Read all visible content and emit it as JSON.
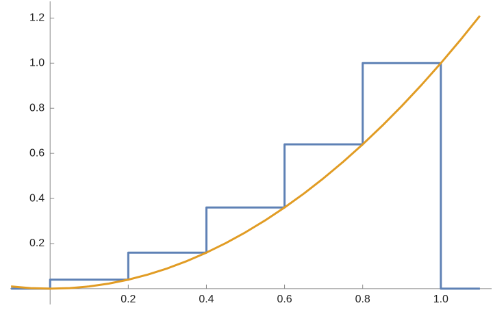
{
  "chart_data": {
    "type": "line",
    "xlim": [
      -0.102,
      1.13
    ],
    "ylim": [
      -0.07,
      1.28
    ],
    "xticks": [
      0.2,
      0.4,
      0.6,
      0.8,
      {
        "value": 1,
        "label": "1.0"
      }
    ],
    "yticks": [
      0.2,
      0.4,
      0.6,
      0.8,
      {
        "value": 1,
        "label": "1.0"
      },
      1.2
    ],
    "series": [
      {
        "color": "#5e81b5",
        "x": [
          -0.1,
          0,
          0,
          0.2,
          0.2,
          0.4,
          0.4,
          0.6,
          0.6,
          0.8,
          0.8,
          1,
          1,
          1.1
        ],
        "values": [
          0,
          0,
          0.04,
          0.04,
          0.16,
          0.16,
          0.36,
          0.36,
          0.64,
          0.64,
          1,
          1,
          0,
          0
        ]
      },
      {
        "color": "#e19c24",
        "x": [
          -0.1,
          -0.05,
          0,
          0.05,
          0.1,
          0.15,
          0.2,
          0.25,
          0.3,
          0.35,
          0.4,
          0.45,
          0.5,
          0.55,
          0.6,
          0.65,
          0.7,
          0.75,
          0.8,
          0.85,
          0.9,
          0.95,
          1,
          1.05,
          1.1
        ],
        "values": [
          0.01,
          0.0025,
          0,
          0.0025,
          0.01,
          0.0225,
          0.04,
          0.0625,
          0.09,
          0.1225,
          0.16,
          0.2025,
          0.25,
          0.3025,
          0.36,
          0.4225,
          0.49,
          0.5625,
          0.64,
          0.7225,
          0.81,
          0.9025,
          1,
          1.1025,
          1.21
        ]
      }
    ]
  }
}
